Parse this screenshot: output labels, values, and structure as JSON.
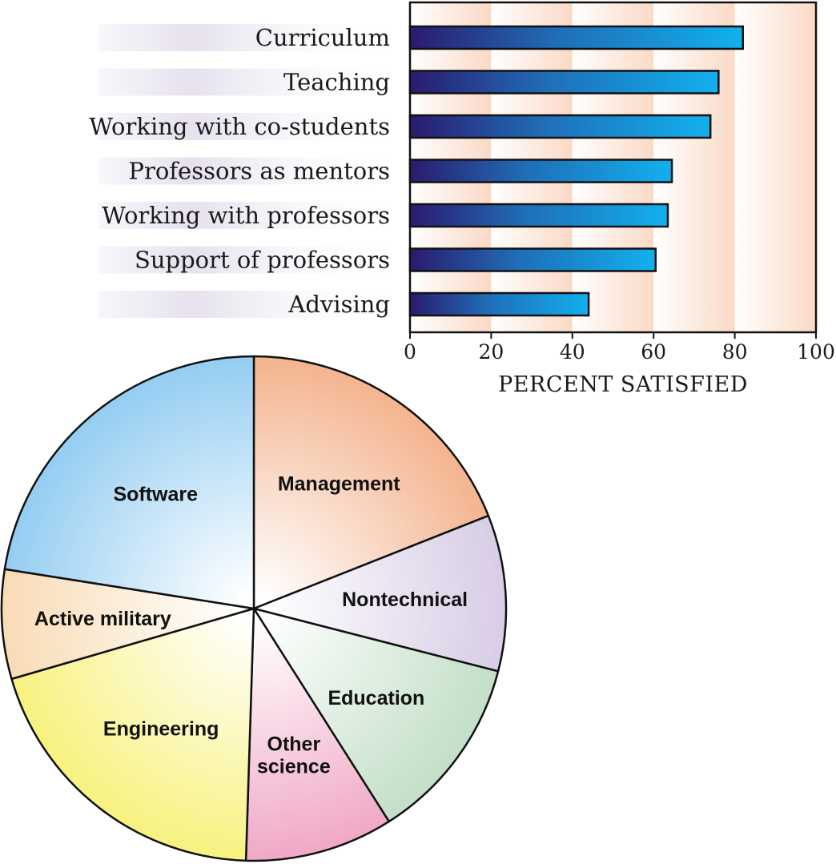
{
  "chart_data": [
    {
      "type": "bar",
      "orientation": "horizontal",
      "categories": [
        "Curriculum",
        "Teaching",
        "Working with co-students",
        "Professors as mentors",
        "Working with professors",
        "Support of professors",
        "Advising"
      ],
      "values": [
        82,
        76,
        74,
        64.5,
        63.5,
        60.5,
        44
      ],
      "xlabel": "PERCENT SATISFIED",
      "xlim": [
        0,
        100
      ],
      "xticks": [
        "0",
        "20",
        "40",
        "60",
        "80",
        "100"
      ],
      "grid": "alternating-bands",
      "colors": {
        "bar_start": "#2b1a6e",
        "bar_mid": "#1f6fb8",
        "bar_end": "#12b0ee",
        "band": "#fde3d4",
        "row_band": "#e6e1ee"
      }
    },
    {
      "type": "pie",
      "categories": [
        "Management",
        "Nontechnical",
        "Education",
        "Other science",
        "Engineering",
        "Active military",
        "Software"
      ],
      "values": [
        19,
        10,
        12,
        9.5,
        20,
        7,
        22.5
      ],
      "labels": [
        [
          "Management"
        ],
        [
          "Nontechnical"
        ],
        [
          "Education"
        ],
        [
          "Other",
          "science"
        ],
        [
          "Engineering"
        ],
        [
          "Active military"
        ],
        [
          "Software"
        ]
      ],
      "colors": [
        "#f4b48f",
        "#d8cde6",
        "#c3dfc7",
        "#f0a8c6",
        "#f8f27f",
        "#f9dcb6",
        "#94cdf2"
      ]
    }
  ]
}
